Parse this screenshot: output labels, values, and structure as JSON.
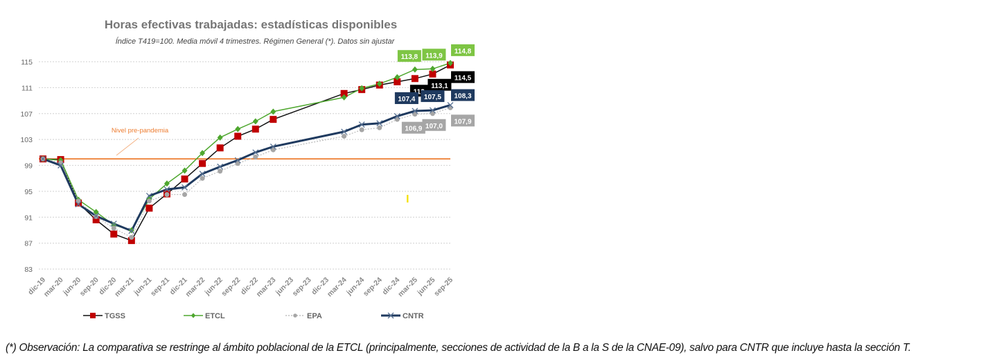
{
  "chart_data": {
    "type": "line",
    "title": "Horas efectivas trabajadas: estadísticas disponibles",
    "subtitle": "Índice T419=100. Media móvil 4 trimestres. Régimen General (*). Datos sin ajustar",
    "xlabel": "",
    "ylabel": "",
    "ylim": [
      83,
      115
    ],
    "yticks": [
      83,
      87,
      91,
      95,
      99,
      103,
      107,
      111,
      115
    ],
    "grid": true,
    "legend_position": "bottom",
    "categories": [
      "dic-19",
      "mar-20",
      "jun-20",
      "sep-20",
      "dic-20",
      "mar-21",
      "jun-21",
      "sep-21",
      "dic-21",
      "mar-22",
      "jun-22",
      "sep-22",
      "dic-22",
      "mar-23",
      "jun-23",
      "sep-23",
      "dic-23",
      "mar-24",
      "jun-24",
      "sep-24",
      "dic-24",
      "mar-25",
      "jun-25",
      "sep-25"
    ],
    "reference_line": {
      "label": "Nivel pre-pandemia",
      "value": 100,
      "color": "#ed7d31"
    },
    "series": [
      {
        "name": "TGSS",
        "color": "#c00000",
        "line": "#111111",
        "marker": "square",
        "values": [
          100,
          99.9,
          93.2,
          90.6,
          88.4,
          87.4,
          92.4,
          94.6,
          96.9,
          99.3,
          101.7,
          103.5,
          104.6,
          106.1,
          null,
          null,
          null,
          110.1,
          110.7,
          111.4,
          111.9,
          112.4,
          113.1,
          114.5
        ],
        "labels": [
          {
            "index": 21,
            "text": "112,4"
          },
          {
            "index": 22,
            "text": "113,1"
          },
          {
            "index": 23,
            "text": "114,5"
          }
        ],
        "label_bg": "#000000"
      },
      {
        "name": "ETCL",
        "color": "#4ea72e",
        "line": "#4ea72e",
        "marker": "diamond",
        "values": [
          100,
          99.8,
          93.7,
          91.8,
          89.8,
          89.0,
          93.8,
          96.2,
          98.2,
          100.9,
          103.3,
          104.6,
          105.8,
          107.3,
          null,
          null,
          null,
          109.5,
          110.9,
          111.6,
          112.6,
          113.8,
          113.9,
          114.8
        ],
        "labels": [
          {
            "index": 21,
            "text": "113,8"
          },
          {
            "index": 22,
            "text": "113,9"
          },
          {
            "index": 23,
            "text": "114,8"
          }
        ],
        "label_bg": "#7ec544"
      },
      {
        "name": "EPA",
        "color": "#a6a6a6",
        "line": "#bfbfbf",
        "marker": "circle",
        "values": [
          100,
          99.4,
          93.5,
          91.1,
          89.3,
          87.9,
          93.5,
          94.5,
          94.5,
          97.0,
          98.1,
          99.3,
          100.3,
          101.4,
          null,
          null,
          null,
          103.5,
          104.5,
          104.8,
          106.1,
          106.9,
          107.0,
          107.9
        ],
        "labels": [
          {
            "index": 21,
            "text": "106,9"
          },
          {
            "index": 22,
            "text": "107,0"
          },
          {
            "index": 23,
            "text": "107,9"
          }
        ],
        "label_bg": "#a6a6a6"
      },
      {
        "name": "CNTR",
        "color": "#1f3a5f",
        "line": "#1f3a5f",
        "marker": "x",
        "values": [
          100,
          99.0,
          93.0,
          91.2,
          90.0,
          88.9,
          94.3,
          95.3,
          95.6,
          97.7,
          98.8,
          99.8,
          101.0,
          101.9,
          null,
          null,
          null,
          104.2,
          105.3,
          105.5,
          106.6,
          107.4,
          107.5,
          108.3
        ],
        "labels": [
          {
            "index": 21,
            "text": "107,4"
          },
          {
            "index": 22,
            "text": "107,5"
          },
          {
            "index": 23,
            "text": "108,3"
          }
        ],
        "label_bg": "#1f3a5f"
      }
    ]
  },
  "footnote": "(*) Observación: La comparativa se restringe al ámbito poblacional de la ETCL (principalmente, secciones de actividad de la B a la S de la CNAE-09), salvo para CNTR que incluye hasta la sección T."
}
